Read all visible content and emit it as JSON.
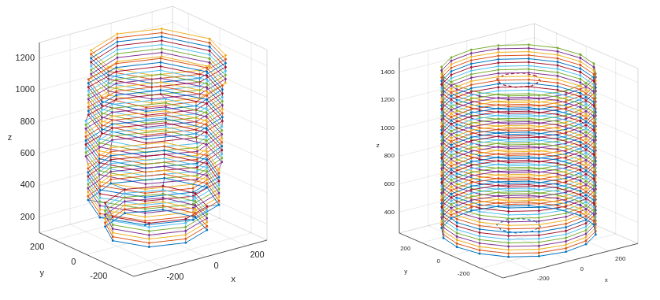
{
  "chart_data": [
    {
      "type": "line3d",
      "x_label": "x",
      "y_label": "y",
      "z_label": "z",
      "xlim": [
        -350,
        300
      ],
      "ylim": [
        -300,
        300
      ],
      "zlim": [
        100,
        1300
      ],
      "xticks": [
        -200,
        0,
        200
      ],
      "yticks": [
        -200,
        0,
        200
      ],
      "zticks": [
        200,
        400,
        600,
        800,
        1000,
        1200
      ],
      "grid": true,
      "marker": "dot",
      "line_style": "solid",
      "sections": [
        {
          "z": [
            150,
            175,
            200,
            225,
            250,
            275,
            300
          ],
          "colors": [
            "#0072BD",
            "#D95319",
            "#EDB120",
            "#7E2F8E",
            "#77AC30",
            "#4DBEEE",
            "#A2142F"
          ],
          "x": [
            180,
            130,
            -10,
            -160,
            -230,
            -160,
            -20,
            130
          ],
          "y": [
            0,
            140,
            200,
            130,
            -10,
            -150,
            -200,
            -140
          ]
        },
        {
          "z": [
            325,
            350,
            375,
            400,
            425,
            450,
            475,
            500,
            525,
            550
          ],
          "colors": [
            "#0072BD",
            "#D95319",
            "#EDB120",
            "#7E2F8E",
            "#77AC30",
            "#4DBEEE",
            "#A2142F",
            "#0072BD",
            "#D95319",
            "#EDB120"
          ],
          "x": [
            230,
            160,
            -40,
            -220,
            -300,
            -210,
            -30,
            150
          ],
          "y": [
            -10,
            170,
            250,
            160,
            -20,
            -190,
            -260,
            -190
          ]
        },
        {
          "z": [
            575,
            600,
            625,
            650,
            675,
            700,
            725,
            750,
            775,
            800
          ],
          "colors": [
            "#7E2F8E",
            "#77AC30",
            "#4DBEEE",
            "#A2142F",
            "#0072BD",
            "#D95319",
            "#EDB120",
            "#7E2F8E",
            "#77AC30",
            "#4DBEEE"
          ],
          "x": [
            250,
            190,
            -10,
            -200,
            -280,
            -200,
            -10,
            180
          ],
          "y": [
            20,
            200,
            280,
            200,
            10,
            -180,
            -260,
            -170
          ]
        },
        {
          "z": [
            825,
            850,
            875,
            900,
            925,
            950,
            975,
            1000,
            1025,
            1050
          ],
          "colors": [
            "#A2142F",
            "#0072BD",
            "#D95319",
            "#EDB120",
            "#7E2F8E",
            "#77AC30",
            "#4DBEEE",
            "#A2142F",
            "#0072BD",
            "#D95319"
          ],
          "x": [
            260,
            180,
            10,
            -180,
            -260,
            -190,
            0,
            190
          ],
          "y": [
            30,
            220,
            280,
            210,
            20,
            -170,
            -240,
            -160
          ]
        },
        {
          "z": [
            1075,
            1100,
            1125,
            1150,
            1175,
            1200,
            1225,
            1250
          ],
          "colors": [
            "#EDB120",
            "#7E2F8E",
            "#77AC30",
            "#4DBEEE",
            "#A2142F",
            "#0072BD",
            "#D95319",
            "#EDB120"
          ],
          "x": [
            250,
            170,
            0,
            -190,
            -250,
            -170,
            10,
            190
          ],
          "y": [
            0,
            200,
            260,
            180,
            -10,
            -180,
            -250,
            -180
          ]
        }
      ]
    },
    {
      "type": "line3d",
      "x_label": "x",
      "y_label": "y",
      "z_label": "z",
      "xlim": [
        -350,
        350
      ],
      "ylim": [
        -350,
        350
      ],
      "zlim": [
        250,
        1500
      ],
      "xticks": [
        -200,
        0,
        200
      ],
      "yticks": [
        -200,
        0,
        200
      ],
      "zticks": [
        400,
        600,
        800,
        1000,
        1200,
        1400
      ],
      "grid": true,
      "marker": "dot",
      "line_style": "solid",
      "sections": [
        {
          "z": [
            300,
            325,
            350,
            375,
            400,
            425,
            450,
            475,
            500,
            525,
            550,
            575,
            600,
            625,
            650,
            675,
            700,
            725,
            750,
            775,
            800,
            825,
            850,
            875,
            900,
            925,
            950,
            975,
            1000,
            1025,
            1050,
            1075,
            1100,
            1125,
            1150,
            1175,
            1200,
            1225,
            1250,
            1275,
            1300,
            1325,
            1350,
            1375,
            1400,
            1425,
            1450
          ],
          "colors": [
            "#0072BD",
            "#D95319",
            "#EDB120",
            "#7E2F8E",
            "#77AC30",
            "#4DBEEE",
            "#A2142F",
            "#0072BD",
            "#D95319",
            "#EDB120",
            "#7E2F8E",
            "#77AC30",
            "#4DBEEE",
            "#A2142F",
            "#0072BD",
            "#D95319",
            "#EDB120",
            "#7E2F8E",
            "#77AC30",
            "#4DBEEE",
            "#A2142F",
            "#0072BD",
            "#D95319",
            "#EDB120",
            "#7E2F8E",
            "#77AC30",
            "#4DBEEE",
            "#A2142F",
            "#0072BD",
            "#D95319",
            "#EDB120",
            "#7E2F8E",
            "#77AC30",
            "#4DBEEE",
            "#A2142F",
            "#0072BD",
            "#D95319",
            "#EDB120",
            "#7E2F8E",
            "#77AC30",
            "#4DBEEE",
            "#A2142F",
            "#0072BD",
            "#D95319",
            "#EDB120",
            "#7E2F8E",
            "#77AC30"
          ],
          "x": [
            320,
            296,
            226,
            122,
            0,
            -122,
            -226,
            -296,
            -320,
            -296,
            -226,
            -122,
            0,
            122,
            226,
            296
          ],
          "y": [
            0,
            122,
            226,
            296,
            320,
            296,
            226,
            122,
            0,
            -122,
            -226,
            -296,
            -320,
            -296,
            -226,
            -122
          ]
        }
      ],
      "circles": [
        {
          "z": 1380,
          "color": "#A2142F",
          "line_style": "dashed",
          "x": [
            90,
            64,
            0,
            -64,
            -90,
            -64,
            0,
            64
          ],
          "y": [
            0,
            64,
            90,
            64,
            0,
            -64,
            -90,
            -64
          ]
        },
        {
          "z": 340,
          "color": "#0072BD",
          "line_style": "dashed",
          "x": [
            90,
            64,
            0,
            -64,
            -90,
            -64,
            0,
            64
          ],
          "y": [
            0,
            64,
            90,
            64,
            0,
            -64,
            -90,
            -64
          ]
        }
      ]
    }
  ]
}
